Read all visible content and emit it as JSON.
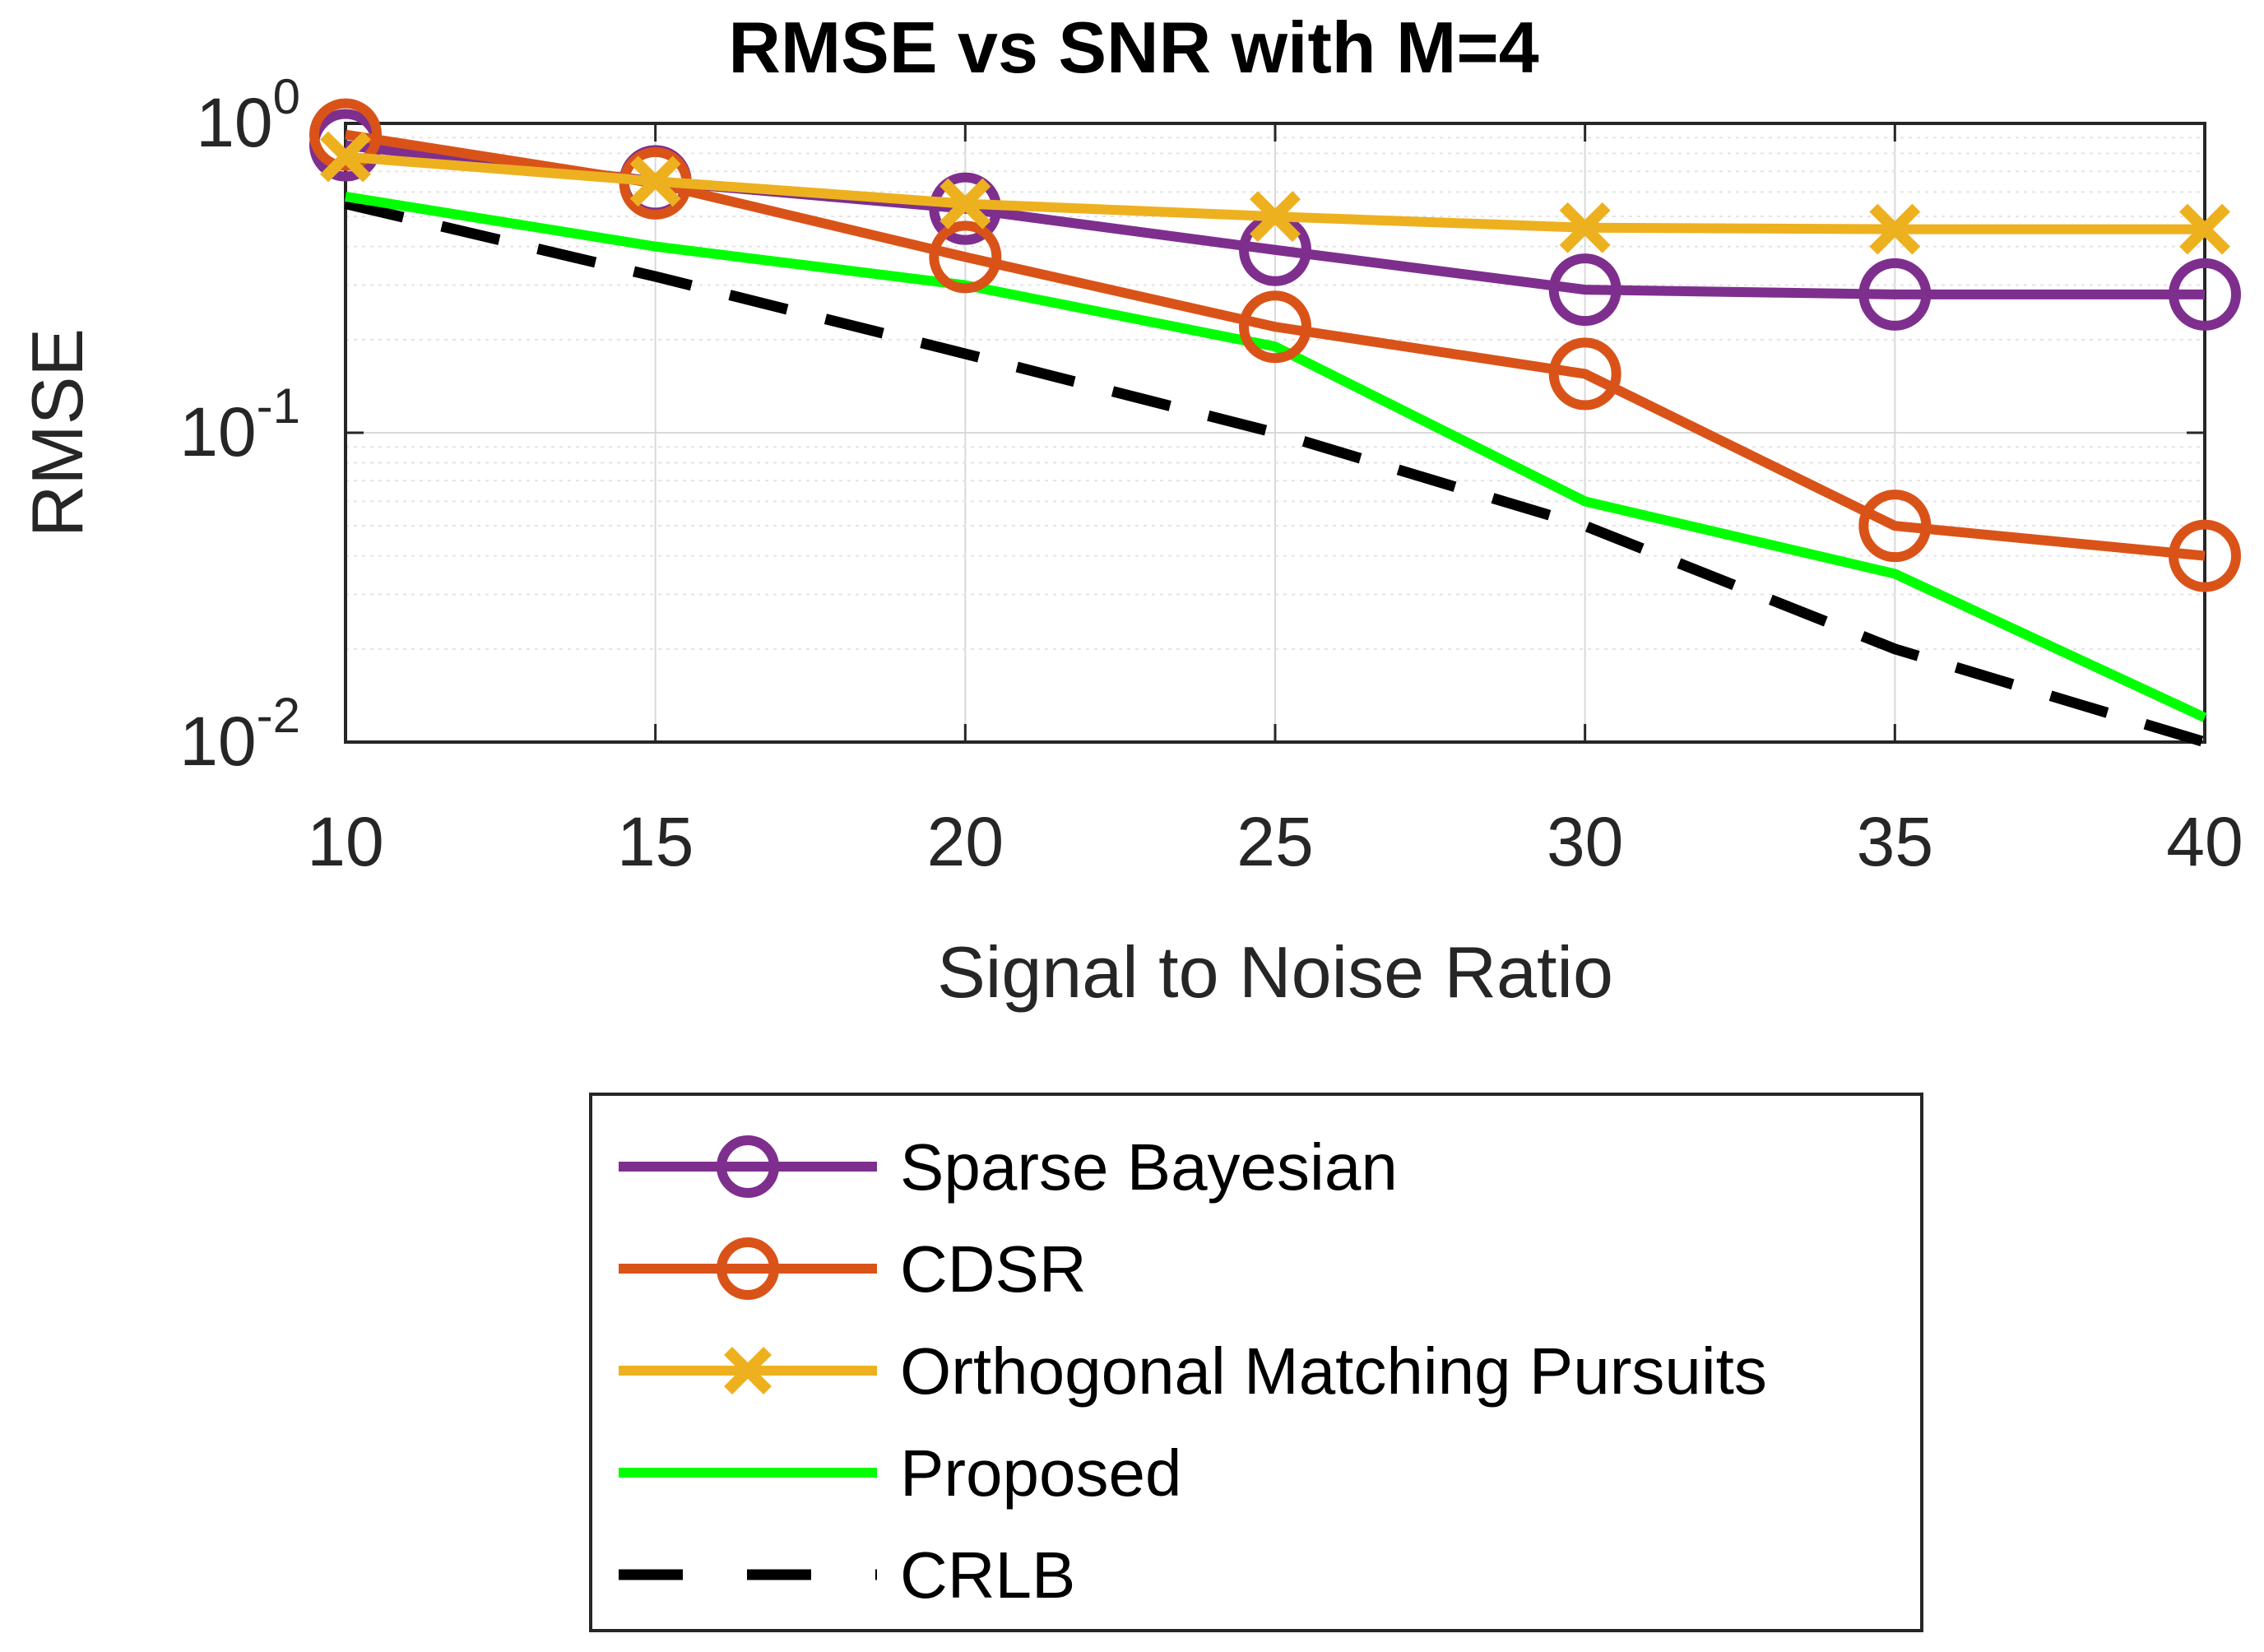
{
  "chart_data": {
    "type": "line",
    "title": "RMSE vs SNR with M=4",
    "xlabel": "Signal to Noise Ratio",
    "ylabel": "RMSE",
    "yscale": "log",
    "xlim": [
      10,
      40
    ],
    "ylim": [
      0.01,
      1
    ],
    "grid": true,
    "x": [
      10,
      15,
      20,
      25,
      30,
      35,
      40
    ],
    "xticks": [
      "10",
      "15",
      "20",
      "25",
      "30",
      "35",
      "40"
    ],
    "yticks": [
      {
        "value": 1,
        "base": "10",
        "exp": "0"
      },
      {
        "value": 0.1,
        "base": "10",
        "exp": "-1"
      },
      {
        "value": 0.01,
        "base": "10",
        "exp": "-2"
      }
    ],
    "legend_position": "below-plot",
    "series": [
      {
        "name": "Sparse Bayesian",
        "color": "#7E2F8E",
        "marker": "circle",
        "style": "solid",
        "values": [
          0.85,
          0.65,
          0.53,
          0.39,
          0.29,
          0.28,
          0.28
        ]
      },
      {
        "name": "CDSR",
        "color": "#D95319",
        "marker": "circle",
        "style": "solid",
        "values": [
          0.92,
          0.64,
          0.37,
          0.22,
          0.155,
          0.05,
          0.04
        ]
      },
      {
        "name": "Orthogonal Matching Pursuits",
        "color": "#EDB120",
        "marker": "x",
        "style": "solid",
        "values": [
          0.78,
          0.65,
          0.55,
          0.5,
          0.46,
          0.455,
          0.455
        ]
      },
      {
        "name": "Proposed",
        "color": "#00FF00",
        "marker": "none",
        "style": "solid",
        "values": [
          0.58,
          0.4,
          0.3,
          0.19,
          0.06,
          0.035,
          0.012
        ]
      },
      {
        "name": "CRLB",
        "color": "#000000",
        "marker": "none",
        "style": "dashed",
        "values": [
          0.55,
          0.32,
          0.18,
          0.1,
          0.05,
          0.02,
          0.01
        ]
      }
    ]
  }
}
